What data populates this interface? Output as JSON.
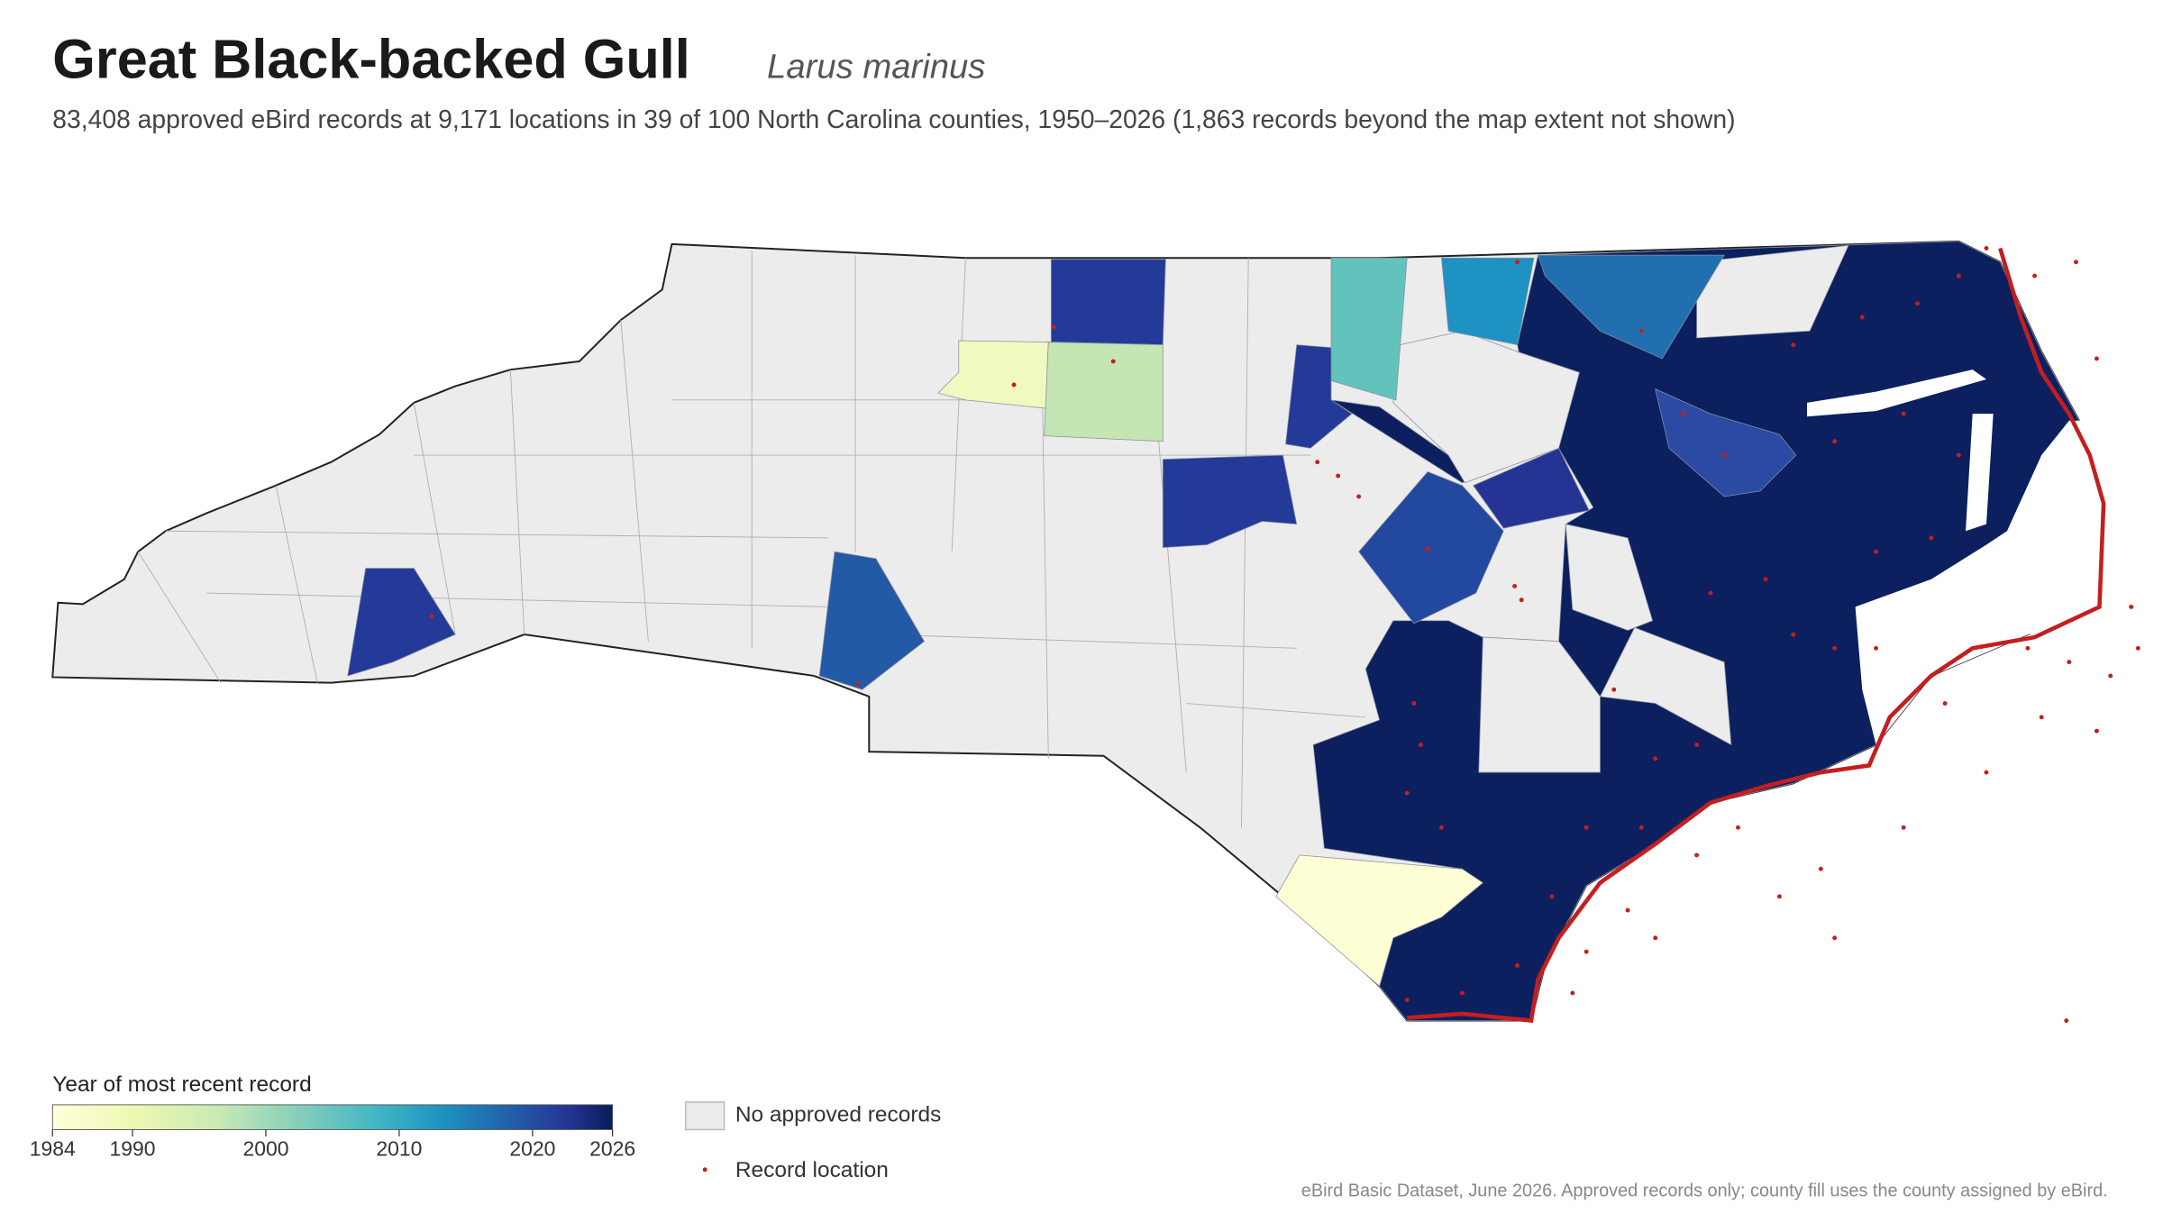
{
  "header": {
    "title": "Great Black-backed Gull",
    "scientific_name": "Larus marinus",
    "subtitle": "83,408 approved eBird records at 9,171 locations in 39 of 100 North Carolina counties, 1950–2026 (1,863 records beyond the map extent not shown)"
  },
  "legend": {
    "title": "Year of most recent record",
    "colorbar": {
      "range": [
        1984,
        2026
      ],
      "ticks": [
        1984,
        1990,
        2000,
        2010,
        2020,
        2026
      ]
    },
    "no_records": "No approved records",
    "record_location": "Record location"
  },
  "footer": "eBird Basic Dataset, June 2026. Approved records only; county fill uses the county assigned by eBird."
}
